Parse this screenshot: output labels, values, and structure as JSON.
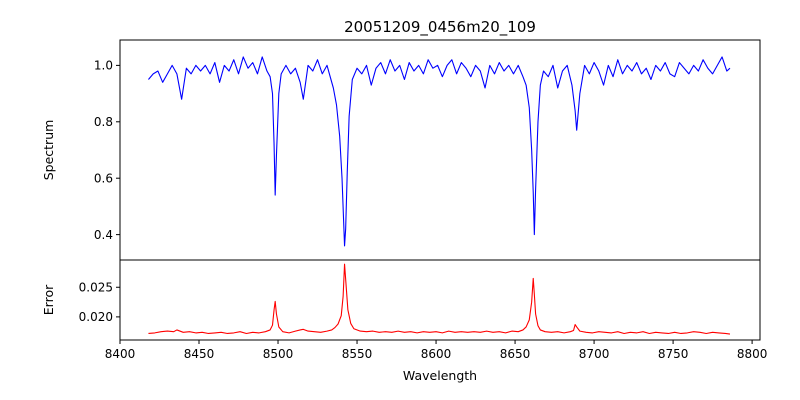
{
  "chart_data": [
    {
      "panel": "top",
      "type": "line",
      "title": "20051209_0456m20_109",
      "xlabel": "",
      "ylabel": "Spectrum",
      "xlim": [
        8400,
        8805
      ],
      "ylim": [
        0.31,
        1.09
      ],
      "xticks": [],
      "yticks": [
        0.4,
        0.6,
        0.8,
        1.0
      ],
      "ytick_labels": [
        "0.4",
        "0.6",
        "0.8",
        "1.0"
      ],
      "grid": false,
      "series": [
        {
          "color": "#0000ff",
          "x": [
            8418,
            8421,
            8424,
            8427,
            8430,
            8433,
            8436,
            8439,
            8442,
            8445,
            8448,
            8451,
            8454,
            8457,
            8460,
            8463,
            8466,
            8469,
            8472,
            8475,
            8478,
            8481,
            8484,
            8487,
            8490,
            8493,
            8495,
            8496.5,
            8497.5,
            8498.2,
            8499,
            8500.5,
            8502,
            8505,
            8508,
            8511,
            8514,
            8516,
            8519,
            8522,
            8525,
            8528,
            8531,
            8533,
            8535,
            8537,
            8539,
            8540.5,
            8541.5,
            8542.1,
            8542.8,
            8543.8,
            8545,
            8547,
            8550,
            8553,
            8556,
            8559,
            8562,
            8565,
            8568,
            8571,
            8574,
            8577,
            8580,
            8583,
            8586,
            8589,
            8592,
            8595,
            8598,
            8601,
            8604,
            8607,
            8610,
            8613,
            8616,
            8619,
            8622,
            8625,
            8628,
            8631,
            8634,
            8637,
            8640,
            8643,
            8646,
            8649,
            8652,
            8655,
            8657,
            8659,
            8660.5,
            8661.5,
            8662.2,
            8663,
            8664.5,
            8666,
            8668,
            8671,
            8674,
            8677,
            8680,
            8683,
            8686,
            8688,
            8689,
            8691,
            8694,
            8697,
            8700,
            8703,
            8706,
            8709,
            8712,
            8715,
            8718,
            8721,
            8724,
            8727,
            8730,
            8733,
            8736,
            8739,
            8742,
            8745,
            8748,
            8751,
            8754,
            8757,
            8760,
            8763,
            8766,
            8769,
            8772,
            8775,
            8778,
            8781,
            8784,
            8786
          ],
          "y": [
            0.95,
            0.97,
            0.98,
            0.94,
            0.97,
            1.0,
            0.97,
            0.88,
            0.99,
            0.97,
            1.0,
            0.98,
            1.0,
            0.97,
            1.01,
            0.94,
            1.0,
            0.98,
            1.02,
            0.97,
            1.03,
            0.99,
            1.01,
            0.97,
            1.03,
            0.98,
            0.96,
            0.9,
            0.72,
            0.54,
            0.68,
            0.9,
            0.97,
            1.0,
            0.97,
            0.99,
            0.94,
            0.88,
            1.0,
            0.98,
            1.02,
            0.97,
            1.0,
            0.96,
            0.92,
            0.86,
            0.75,
            0.6,
            0.45,
            0.36,
            0.42,
            0.62,
            0.82,
            0.95,
            0.99,
            0.97,
            1.0,
            0.93,
            0.99,
            1.01,
            0.97,
            1.02,
            0.98,
            1.0,
            0.95,
            1.01,
            0.98,
            1.0,
            0.97,
            1.02,
            0.99,
            1.0,
            0.96,
            1.0,
            1.02,
            0.97,
            1.01,
            0.99,
            0.96,
            1.0,
            0.98,
            0.92,
            1.0,
            0.97,
            1.01,
            0.98,
            1.0,
            0.97,
            1.0,
            0.96,
            0.93,
            0.85,
            0.7,
            0.55,
            0.4,
            0.56,
            0.8,
            0.93,
            0.98,
            0.96,
            1.0,
            0.92,
            0.98,
            1.0,
            0.93,
            0.84,
            0.77,
            0.9,
            1.0,
            0.97,
            1.01,
            0.98,
            0.93,
            1.0,
            0.96,
            1.02,
            0.97,
            1.0,
            0.98,
            1.01,
            0.97,
            0.99,
            0.95,
            1.0,
            0.98,
            1.01,
            0.97,
            0.96,
            1.01,
            0.99,
            0.97,
            1.0,
            0.98,
            1.02,
            0.99,
            0.97,
            1.0,
            1.03,
            0.98,
            0.99
          ]
        }
      ]
    },
    {
      "panel": "bottom",
      "type": "line",
      "title": "",
      "xlabel": "Wavelength",
      "ylabel": "Error",
      "xlim": [
        8400,
        8805
      ],
      "ylim": [
        0.0161,
        0.0296
      ],
      "xticks": [
        8400,
        8450,
        8500,
        8550,
        8600,
        8650,
        8700,
        8750,
        8800
      ],
      "xtick_labels": [
        "8400",
        "8450",
        "8500",
        "8550",
        "8600",
        "8650",
        "8700",
        "8750",
        "8800"
      ],
      "yticks": [
        0.02,
        0.025
      ],
      "ytick_labels": [
        "0.020",
        "0.025"
      ],
      "grid": false,
      "series": [
        {
          "color": "#ff0000",
          "x": [
            8418,
            8422,
            8426,
            8430,
            8434,
            8436,
            8440,
            8444,
            8448,
            8452,
            8456,
            8460,
            8464,
            8468,
            8472,
            8476,
            8480,
            8484,
            8488,
            8492,
            8495,
            8496.5,
            8497.5,
            8498.2,
            8499,
            8500.5,
            8503,
            8507,
            8511,
            8514,
            8516,
            8519,
            8523,
            8527,
            8531,
            8534,
            8536,
            8538,
            8540,
            8541.2,
            8542.1,
            8543,
            8544.2,
            8546,
            8548,
            8552,
            8556,
            8560,
            8564,
            8568,
            8572,
            8576,
            8580,
            8584,
            8588,
            8592,
            8596,
            8600,
            8604,
            8608,
            8612,
            8616,
            8620,
            8624,
            8628,
            8632,
            8636,
            8640,
            8644,
            8648,
            8652,
            8655,
            8657,
            8659,
            8660.5,
            8661.5,
            8662.2,
            8663,
            8664.5,
            8666,
            8669,
            8673,
            8677,
            8681,
            8685,
            8687,
            8688,
            8689,
            8691,
            8695,
            8699,
            8703,
            8707,
            8711,
            8715,
            8719,
            8723,
            8727,
            8731,
            8735,
            8739,
            8743,
            8747,
            8751,
            8755,
            8759,
            8763,
            8767,
            8771,
            8775,
            8779,
            8783,
            8786
          ],
          "y": [
            0.0172,
            0.0173,
            0.0175,
            0.0176,
            0.0175,
            0.0178,
            0.0174,
            0.0175,
            0.0173,
            0.0174,
            0.0172,
            0.0173,
            0.0174,
            0.0172,
            0.0173,
            0.0175,
            0.0172,
            0.0174,
            0.0173,
            0.0175,
            0.0178,
            0.0186,
            0.0212,
            0.0226,
            0.0205,
            0.0183,
            0.0175,
            0.0173,
            0.0176,
            0.0178,
            0.0179,
            0.0176,
            0.0175,
            0.0174,
            0.0176,
            0.0178,
            0.0182,
            0.0188,
            0.0202,
            0.0235,
            0.0289,
            0.0256,
            0.0212,
            0.0189,
            0.018,
            0.0176,
            0.0175,
            0.0176,
            0.0174,
            0.0175,
            0.0174,
            0.0176,
            0.0174,
            0.0175,
            0.0173,
            0.0175,
            0.0174,
            0.0175,
            0.0173,
            0.0176,
            0.0174,
            0.0175,
            0.0174,
            0.0175,
            0.0174,
            0.0176,
            0.0174,
            0.0175,
            0.0173,
            0.0176,
            0.0175,
            0.0178,
            0.0183,
            0.0195,
            0.0225,
            0.0265,
            0.0238,
            0.0205,
            0.0185,
            0.0178,
            0.0175,
            0.0174,
            0.0175,
            0.0173,
            0.0175,
            0.0177,
            0.0187,
            0.0183,
            0.0176,
            0.0174,
            0.0173,
            0.0175,
            0.0174,
            0.0173,
            0.0175,
            0.0172,
            0.0174,
            0.0173,
            0.0175,
            0.0172,
            0.0174,
            0.0173,
            0.0172,
            0.0174,
            0.0172,
            0.0173,
            0.0175,
            0.0174,
            0.0172,
            0.0174,
            0.0173,
            0.0172,
            0.0171
          ]
        }
      ]
    }
  ]
}
